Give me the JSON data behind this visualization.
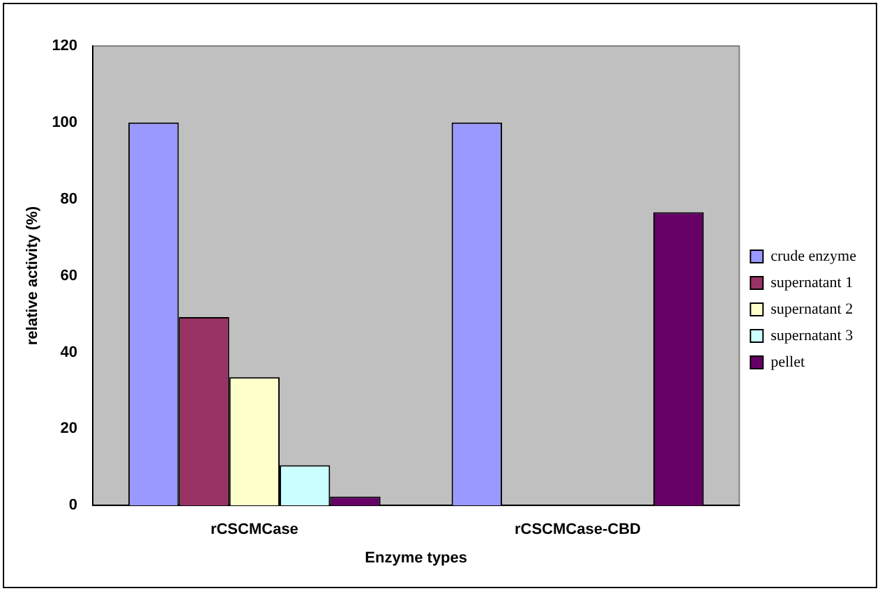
{
  "chart_data": {
    "type": "bar",
    "xlabel": "Enzyme types",
    "ylabel": "relative activity (%)",
    "categories": [
      "rCSCMCase",
      "rCSCMCase-CBD"
    ],
    "series": [
      {
        "name": "crude enzyme",
        "color": "#9999ff",
        "values": [
          100,
          100
        ]
      },
      {
        "name": "supernatant 1",
        "color": "#993366",
        "values": [
          49.2,
          0
        ]
      },
      {
        "name": "supernatant 2",
        "color": "#ffffcc",
        "values": [
          33.5,
          0
        ]
      },
      {
        "name": "supernatant 3",
        "color": "#ccffff",
        "values": [
          10.5,
          0
        ]
      },
      {
        "name": "pellet",
        "color": "#660066",
        "values": [
          2.3,
          76.6
        ]
      }
    ],
    "ylim": [
      0,
      120
    ],
    "yticks": [
      0,
      20,
      40,
      60,
      80,
      100,
      120
    ],
    "grid": false,
    "legend": "right"
  }
}
